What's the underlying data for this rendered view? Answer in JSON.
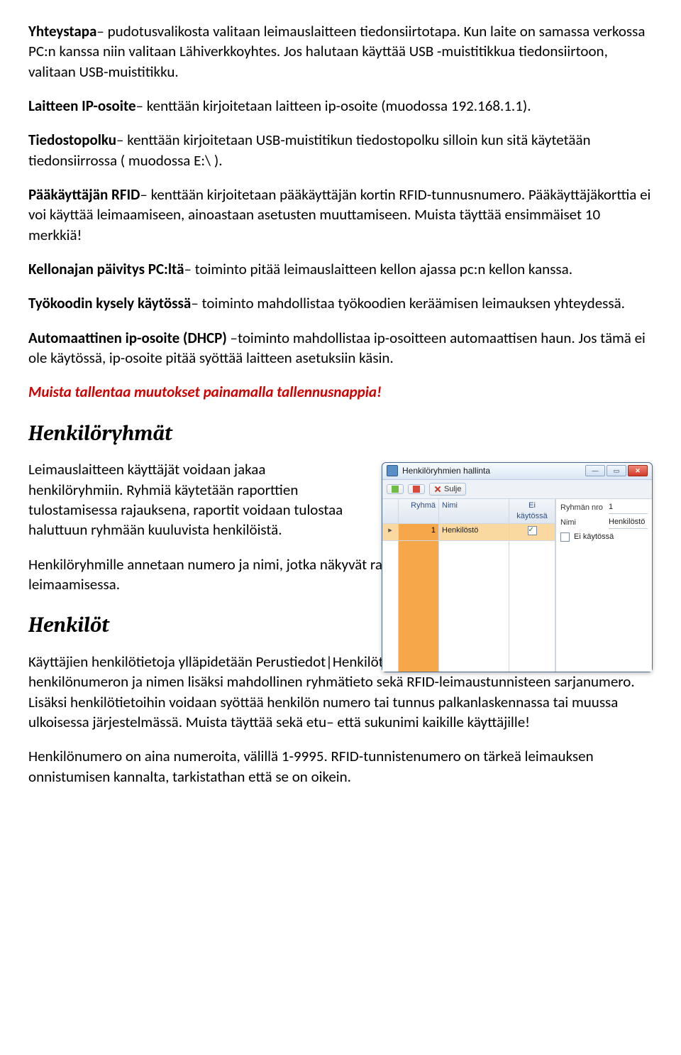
{
  "p1": {
    "b": "Yhteystapa",
    "t": "– pudotusvalikosta valitaan leimauslaitteen tiedonsiirtotapa. Kun laite on samassa verkossa PC:n kanssa niin valitaan Lähiverkkoyhtes. Jos halutaan käyttää USB -muistitikkua tiedonsiirtoon, valitaan USB-muistitikku."
  },
  "p2": {
    "b": "Laitteen IP-osoite",
    "t": "– kenttään kirjoitetaan laitteen ip-osoite (muodossa 192.168.1.1)."
  },
  "p3": {
    "b": "Tiedostopolku",
    "t": "– kenttään kirjoitetaan USB-muistitikun tiedostopolku silloin kun sitä käytetään tiedonsiirrossa ( muodossa E:\\ )."
  },
  "p4": {
    "b": "Pääkäyttäjän RFID",
    "t": "– kenttään kirjoitetaan pääkäyttäjän kortin RFID-tunnusnumero. Pääkäyttäjäkorttia ei voi käyttää leimaamiseen, ainoastaan asetusten muuttamiseen. Muista täyttää ensimmäiset 10 merkkiä!"
  },
  "p5": {
    "b": "Kellonajan päivitys PC:ltä",
    "t": "– toiminto pitää leimauslaitteen kellon ajassa pc:n kellon kanssa."
  },
  "p6": {
    "b": "Työkoodin kysely käytössä",
    "t": "– toiminto mahdollistaa työkoodien keräämisen leimauksen yhteydessä."
  },
  "p7": {
    "b": "Automaattinen ip-osoite (DHCP)",
    "t": " –toiminto mahdollistaa ip-osoitteen automaattisen haun. Jos tämä ei ole käytössä, ip-osoite pitää syöttää laitteen asetuksiin käsin."
  },
  "warn": "Muista tallentaa muutokset painamalla tallennusnappia!",
  "h1": "Henkilöryhmät",
  "p8": "Leimauslaitteen käyttäjät voidaan jakaa henkilöryhmiin. Ryhmiä käytetään raporttien tulostamisessa rajauksena, raportit voidaan tulostaa haluttuun ryhmään kuuluvista henkilöistä.",
  "p9": "Henkilöryhmille annetaan numero ja nimi, jotka näkyvät raportteja tulostettaessa. Ryhmiä ei käytetä leimaamisessa.",
  "h2": "Henkilöt",
  "p10": "Käyttäjien henkilötietoja ylläpidetään Perustiedot|Henkilöt –toiminnossa. Henkilötietoihin syötetään henkilönumeron ja nimen lisäksi mahdollinen ryhmätieto sekä RFID-leimaustunnisteen sarjanumero. Lisäksi henkilötietoihin voidaan syöttää henkilön numero tai tunnus palkanlaskennassa tai muussa ulkoisessa järjestelmässä. Muista täyttää sekä etu– että sukunimi kaikille käyttäjille!",
  "p11a": "Henkilönumero on aina numeroita, välillä ",
  "p11b": "1-9995",
  "p11c": ". RFID-tunnistenumero on tärkeä leimauksen onnistumisen kannalta, tarkistathan että se on oikein.",
  "win": {
    "title": "Henkilöryhmien hallinta",
    "btn_add": "",
    "btn_del": "",
    "btn_close": "Sulje",
    "cols": {
      "ryhma": "Ryhmä",
      "nimi": "Nimi",
      "ek": "Ei käytössä"
    },
    "row": {
      "num": "1",
      "name": "Henkilöstö",
      "ek_checked": true
    },
    "side": {
      "lbl_num": "Ryhmän nro",
      "val_num": "1",
      "lbl_name": "Nimi",
      "val_name": "Henkilöstö",
      "lbl_ek": "Ei käytössä"
    }
  }
}
